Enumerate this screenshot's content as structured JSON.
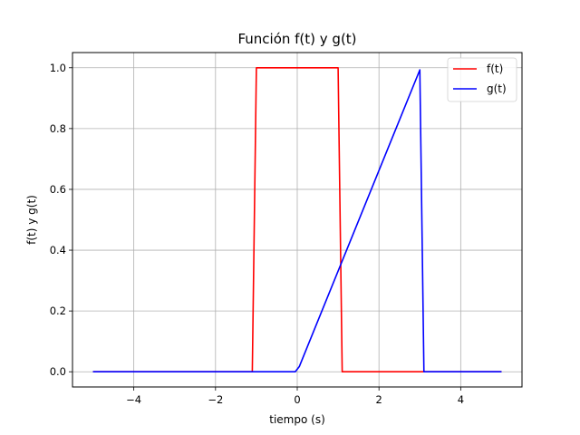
{
  "chart_data": {
    "type": "line",
    "title": "Función f(t) y g(t)",
    "xlabel": "tiempo (s)",
    "ylabel": "f(t) y g(t)",
    "xlim": [
      -5.5,
      5.5
    ],
    "ylim": [
      -0.05,
      1.05
    ],
    "xticks": [
      -4,
      -2,
      0,
      2,
      4
    ],
    "xtick_labels": [
      "−4",
      "−2",
      "0",
      "2",
      "4"
    ],
    "yticks": [
      0.0,
      0.2,
      0.4,
      0.6,
      0.8,
      1.0
    ],
    "ytick_labels": [
      "0.0",
      "0.2",
      "0.4",
      "0.6",
      "0.8",
      "1.0"
    ],
    "grid": true,
    "legend_position": "top-right",
    "series": [
      {
        "name": "f(t)",
        "color": "#ff0000",
        "x": [
          -5,
          -1.1,
          -1.0,
          0.9,
          1.0,
          1.1,
          5
        ],
        "y": [
          0,
          0,
          1,
          1,
          1,
          0,
          0
        ]
      },
      {
        "name": "g(t)",
        "color": "#0000ff",
        "x": [
          -5,
          -0.05,
          0.05,
          3.0,
          3.1,
          5
        ],
        "y": [
          0,
          0,
          0.017,
          0.993,
          0,
          0
        ]
      }
    ]
  }
}
